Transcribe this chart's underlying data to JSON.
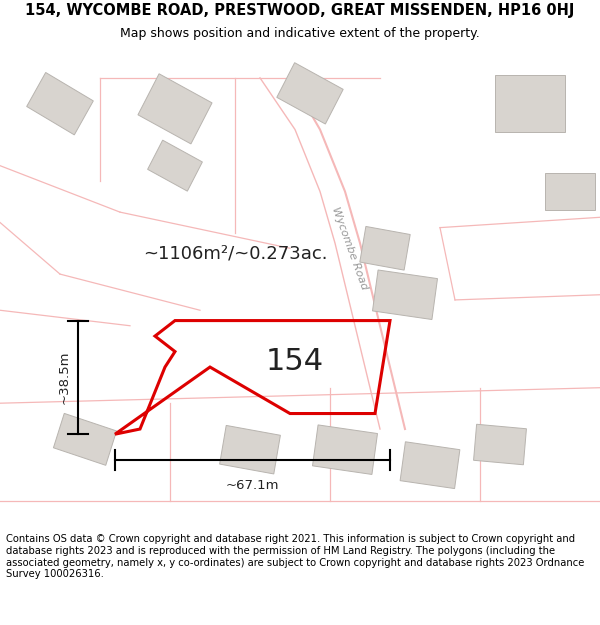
{
  "title_line1": "154, WYCOMBE ROAD, PRESTWOOD, GREAT MISSENDEN, HP16 0HJ",
  "title_line2": "Map shows position and indicative extent of the property.",
  "footer_text": "Contains OS data © Crown copyright and database right 2021. This information is subject to Crown copyright and database rights 2023 and is reproduced with the permission of HM Land Registry. The polygons (including the associated geometry, namely x, y co-ordinates) are subject to Crown copyright and database rights 2023 Ordnance Survey 100026316.",
  "background_color": "#ffffff",
  "map_background": "#ffffff",
  "plot_outline_color": "#dd0000",
  "road_line_color": "#f5b8b8",
  "building_fill": "#d8d4cf",
  "building_edge": "#b8b4af",
  "area_text": "~1106m²/~0.273ac.",
  "plot_label": "154",
  "dim_width": "~67.1m",
  "dim_height": "~38.5m",
  "road_label": "Wycombe Road",
  "title_fontsize": 10.5,
  "subtitle_fontsize": 9,
  "footer_fontsize": 7.2
}
